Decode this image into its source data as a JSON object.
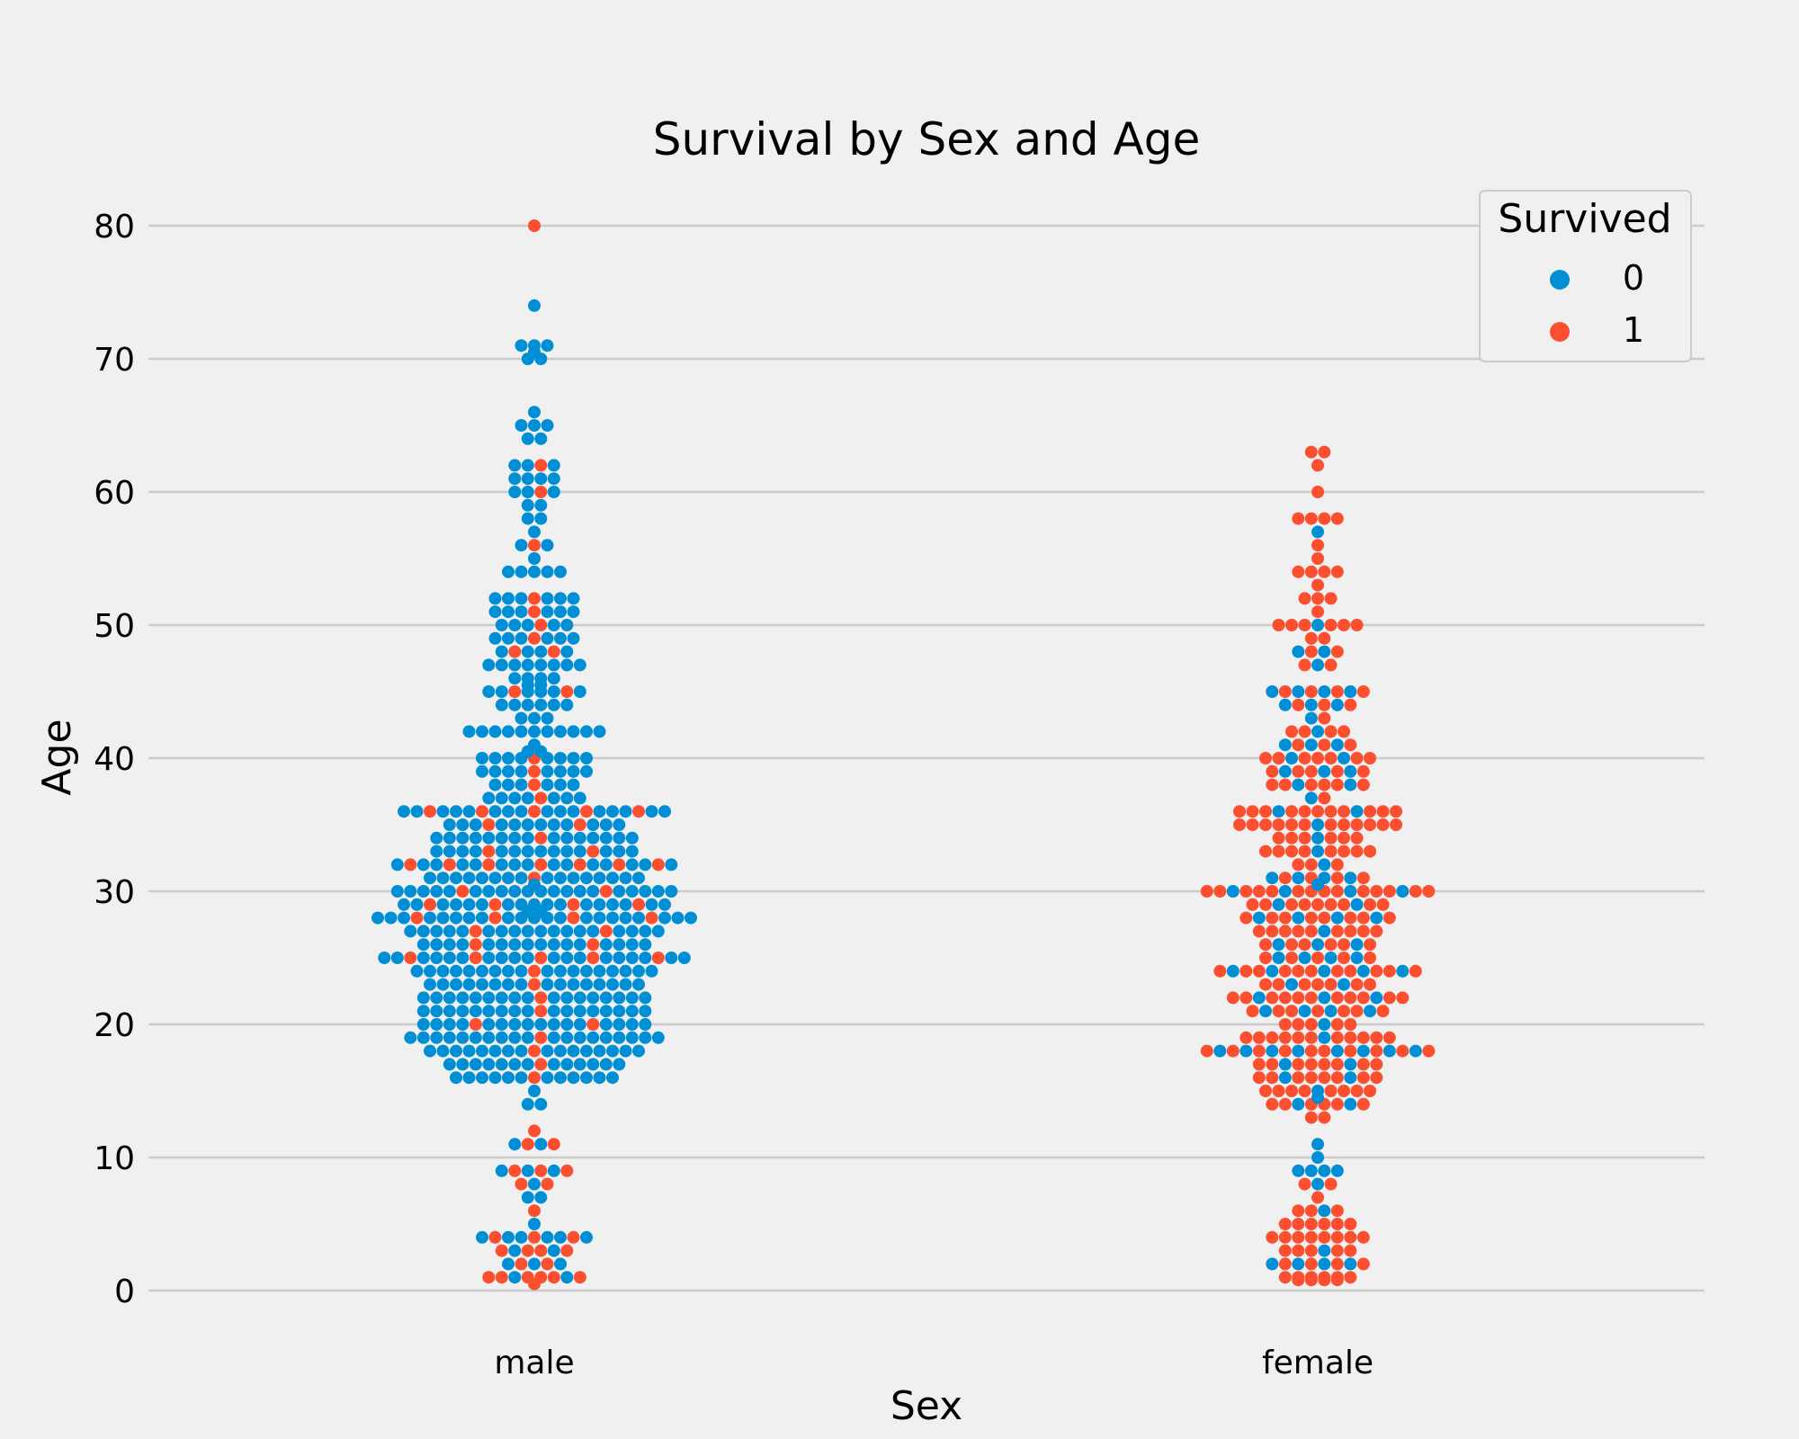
{
  "chart_data": {
    "type": "scatter",
    "subtype": "swarm",
    "title": "Survival by Sex and Age",
    "xlabel": "Sex",
    "ylabel": "Age",
    "categories": [
      "male",
      "female"
    ],
    "ylim": [
      0,
      80
    ],
    "yticks": [
      "0",
      "10",
      "20",
      "30",
      "40",
      "50",
      "60",
      "70",
      "80"
    ],
    "grid": true,
    "legend": {
      "title": "Survived",
      "position": "top-right",
      "entries": [
        "0",
        "1"
      ]
    },
    "colors": {
      "0": "#008fd5",
      "1": "#fc4f30",
      "background": "#f0f0f0",
      "grid": "#cbcbcb"
    },
    "series": [
      {
        "name": "0",
        "values": {
          "male": [
            [
              74,
              1
            ],
            [
              71,
              3
            ],
            [
              70.5,
              1
            ],
            [
              70,
              2
            ],
            [
              66,
              1
            ],
            [
              65,
              3
            ],
            [
              64,
              2
            ],
            [
              62,
              3
            ],
            [
              61,
              4
            ],
            [
              60,
              3
            ],
            [
              59,
              2
            ],
            [
              58,
              2
            ],
            [
              57,
              1
            ],
            [
              56,
              2
            ],
            [
              55,
              1
            ],
            [
              54,
              5
            ],
            [
              52,
              6
            ],
            [
              51,
              6
            ],
            [
              50,
              5
            ],
            [
              49,
              6
            ],
            [
              48,
              4
            ],
            [
              47,
              8
            ],
            [
              46,
              4
            ],
            [
              45.5,
              2
            ],
            [
              45,
              6
            ],
            [
              44,
              6
            ],
            [
              43,
              3
            ],
            [
              42,
              11
            ],
            [
              41,
              1
            ],
            [
              40.5,
              2
            ],
            [
              40,
              8
            ],
            [
              39,
              8
            ],
            [
              38,
              6
            ],
            [
              37,
              7
            ],
            [
              36,
              16
            ],
            [
              35,
              12
            ],
            [
              34,
              15
            ],
            [
              33,
              14
            ],
            [
              32,
              15
            ],
            [
              31,
              16
            ],
            [
              30.5,
              1
            ],
            [
              30,
              20
            ],
            [
              29,
              17
            ],
            [
              28.5,
              2
            ],
            [
              28,
              21
            ],
            [
              27,
              18
            ],
            [
              26,
              16
            ],
            [
              25,
              19
            ],
            [
              24,
              18
            ],
            [
              23,
              16
            ],
            [
              22,
              17
            ],
            [
              21,
              17
            ],
            [
              20,
              16
            ],
            [
              19,
              19
            ],
            [
              18,
              16
            ],
            [
              17,
              13
            ],
            [
              16,
              12
            ],
            [
              15,
              1
            ],
            [
              14,
              2
            ],
            [
              11,
              2
            ],
            [
              9,
              3
            ],
            [
              8,
              1
            ],
            [
              7,
              2
            ],
            [
              5,
              1
            ],
            [
              4,
              6
            ],
            [
              3,
              2
            ],
            [
              2,
              3
            ],
            [
              1,
              2
            ]
          ],
          "female": [
            [
              57,
              1
            ],
            [
              50,
              1
            ],
            [
              48,
              2
            ],
            [
              47,
              1
            ],
            [
              45,
              4
            ],
            [
              44,
              3
            ],
            [
              43,
              1
            ],
            [
              42,
              1
            ],
            [
              41,
              3
            ],
            [
              40,
              2
            ],
            [
              39,
              3
            ],
            [
              38,
              2
            ],
            [
              37,
              1
            ],
            [
              36,
              2
            ],
            [
              35,
              1
            ],
            [
              34,
              1
            ],
            [
              33,
              1
            ],
            [
              32,
              1
            ],
            [
              31,
              4
            ],
            [
              30.5,
              1
            ],
            [
              30,
              4
            ],
            [
              29,
              2
            ],
            [
              28,
              4
            ],
            [
              27,
              1
            ],
            [
              26,
              3
            ],
            [
              25,
              4
            ],
            [
              24,
              5
            ],
            [
              23,
              2
            ],
            [
              22,
              3
            ],
            [
              21,
              4
            ],
            [
              20,
              1
            ],
            [
              19,
              1
            ],
            [
              18,
              8
            ],
            [
              17,
              2
            ],
            [
              16,
              2
            ],
            [
              15,
              1
            ],
            [
              14.5,
              1
            ],
            [
              14,
              2
            ],
            [
              11,
              1
            ],
            [
              10,
              1
            ],
            [
              9,
              4
            ],
            [
              8,
              1
            ],
            [
              6,
              1
            ],
            [
              3,
              1
            ],
            [
              2,
              4
            ]
          ]
        }
      },
      {
        "name": "1",
        "values": {
          "male": [
            [
              80,
              1
            ],
            [
              62,
              1
            ],
            [
              60,
              1
            ],
            [
              56,
              1
            ],
            [
              52,
              1
            ],
            [
              51,
              1
            ],
            [
              50,
              1
            ],
            [
              49,
              1
            ],
            [
              48,
              2
            ],
            [
              45,
              2
            ],
            [
              40,
              1
            ],
            [
              39,
              1
            ],
            [
              38,
              1
            ],
            [
              37,
              1
            ],
            [
              36,
              5
            ],
            [
              35,
              2
            ],
            [
              34,
              1
            ],
            [
              33,
              2
            ],
            [
              32,
              7
            ],
            [
              31,
              1
            ],
            [
              30,
              2
            ],
            [
              29,
              4
            ],
            [
              28,
              4
            ],
            [
              27,
              2
            ],
            [
              26,
              2
            ],
            [
              25,
              5
            ],
            [
              24,
              1
            ],
            [
              23,
              1
            ],
            [
              22,
              1
            ],
            [
              21,
              1
            ],
            [
              20,
              2
            ],
            [
              19,
              1
            ],
            [
              18,
              1
            ],
            [
              17,
              1
            ],
            [
              16,
              1
            ],
            [
              12,
              1
            ],
            [
              11,
              2
            ],
            [
              9,
              3
            ],
            [
              8,
              2
            ],
            [
              6,
              1
            ],
            [
              4,
              3
            ],
            [
              3,
              4
            ],
            [
              2,
              2
            ],
            [
              1,
              6
            ],
            [
              0.5,
              1
            ]
          ],
          "female": [
            [
              63,
              2
            ],
            [
              62,
              1
            ],
            [
              60,
              1
            ],
            [
              58,
              4
            ],
            [
              56,
              1
            ],
            [
              55,
              1
            ],
            [
              54,
              4
            ],
            [
              53,
              1
            ],
            [
              52,
              3
            ],
            [
              51,
              1
            ],
            [
              50,
              6
            ],
            [
              49,
              2
            ],
            [
              48,
              2
            ],
            [
              47,
              2
            ],
            [
              45,
              4
            ],
            [
              44,
              3
            ],
            [
              43,
              1
            ],
            [
              42,
              4
            ],
            [
              41,
              3
            ],
            [
              40,
              7
            ],
            [
              39,
              5
            ],
            [
              38,
              6
            ],
            [
              37,
              1
            ],
            [
              36,
              11
            ],
            [
              35,
              12
            ],
            [
              34,
              6
            ],
            [
              33,
              8
            ],
            [
              32,
              3
            ],
            [
              31,
              4
            ],
            [
              30,
              14
            ],
            [
              29,
              9
            ],
            [
              28,
              8
            ],
            [
              27,
              9
            ],
            [
              26,
              6
            ],
            [
              25,
              5
            ],
            [
              24,
              11
            ],
            [
              23,
              7
            ],
            [
              22,
              11
            ],
            [
              21,
              7
            ],
            [
              20,
              5
            ],
            [
              19,
              11
            ],
            [
              18,
              10
            ],
            [
              17,
              8
            ],
            [
              16,
              8
            ],
            [
              15,
              8
            ],
            [
              14,
              6
            ],
            [
              13,
              2
            ],
            [
              8,
              2
            ],
            [
              7,
              1
            ],
            [
              6,
              3
            ],
            [
              5,
              6
            ],
            [
              4,
              8
            ],
            [
              3,
              5
            ],
            [
              2,
              4
            ],
            [
              1,
              6
            ],
            [
              0.8,
              4
            ]
          ]
        }
      }
    ]
  }
}
